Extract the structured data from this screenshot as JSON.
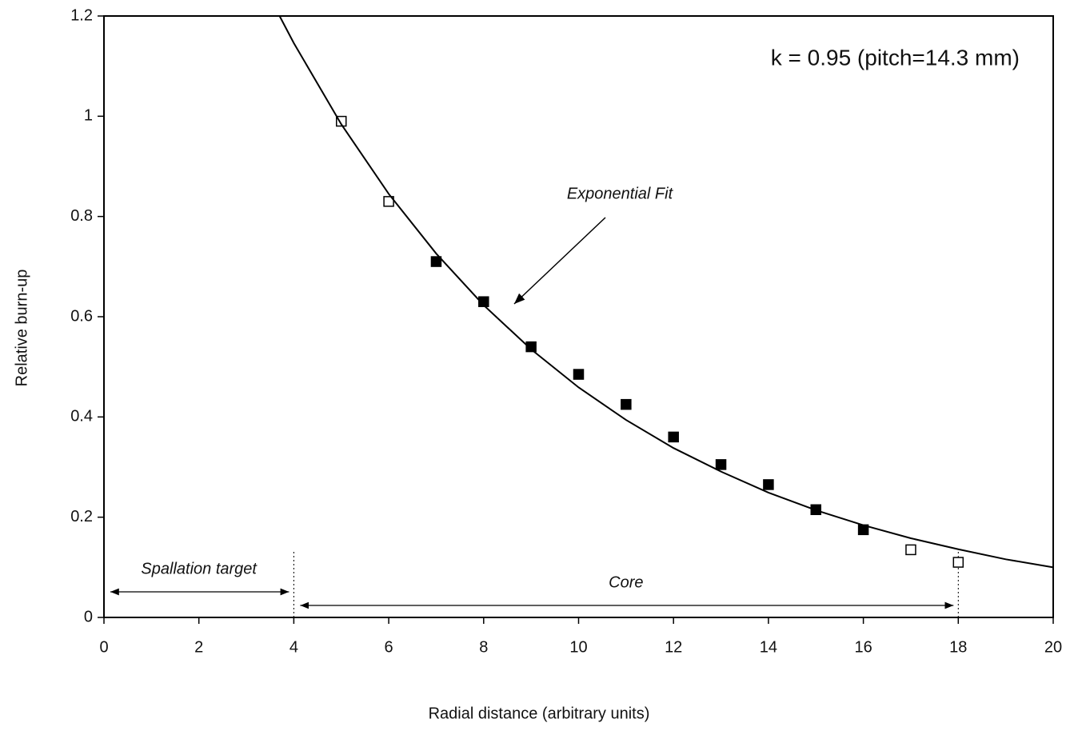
{
  "chart_data": {
    "type": "scatter",
    "xlabel": "Radial distance (arbitrary units)",
    "ylabel": "Relative burn-up",
    "xlim": [
      0,
      20
    ],
    "xticks": [
      0,
      2,
      4,
      6,
      8,
      10,
      12,
      14,
      16,
      18,
      20
    ],
    "ylim": [
      0,
      1.2
    ],
    "yticks": [
      0,
      0.2,
      0.4,
      0.6,
      0.8,
      1,
      1.2
    ],
    "series": [
      {
        "marker": "open-square",
        "color": "#000000",
        "x": [
          5,
          6,
          17,
          18
        ],
        "values": [
          0.99,
          0.83,
          0.135,
          0.11
        ]
      },
      {
        "marker": "filled-square",
        "color": "#000000",
        "x": [
          7,
          8,
          9,
          10,
          11,
          12,
          13,
          14,
          15,
          16
        ],
        "values": [
          0.71,
          0.63,
          0.54,
          0.485,
          0.425,
          0.36,
          0.305,
          0.265,
          0.215,
          0.175
        ]
      },
      {
        "marker": "line",
        "color": "#000000",
        "x": [
          3.7,
          4,
          5,
          6,
          7,
          8,
          9,
          10,
          11,
          12,
          13,
          14,
          15,
          16,
          17,
          18,
          19,
          20
        ],
        "values": [
          1.2,
          1.146,
          0.984,
          0.845,
          0.726,
          0.623,
          0.535,
          0.459,
          0.394,
          0.338,
          0.291,
          0.249,
          0.214,
          0.184,
          0.158,
          0.136,
          0.116,
          0.1
        ]
      }
    ],
    "annotations": [
      "k = 0.95 (pitch=14.3 mm)",
      "Exponential Fit"
    ],
    "regions": [
      {
        "label": "Spallation target",
        "from": 0,
        "to": 4
      },
      {
        "label": "Core",
        "from": 4,
        "to": 18
      }
    ]
  }
}
